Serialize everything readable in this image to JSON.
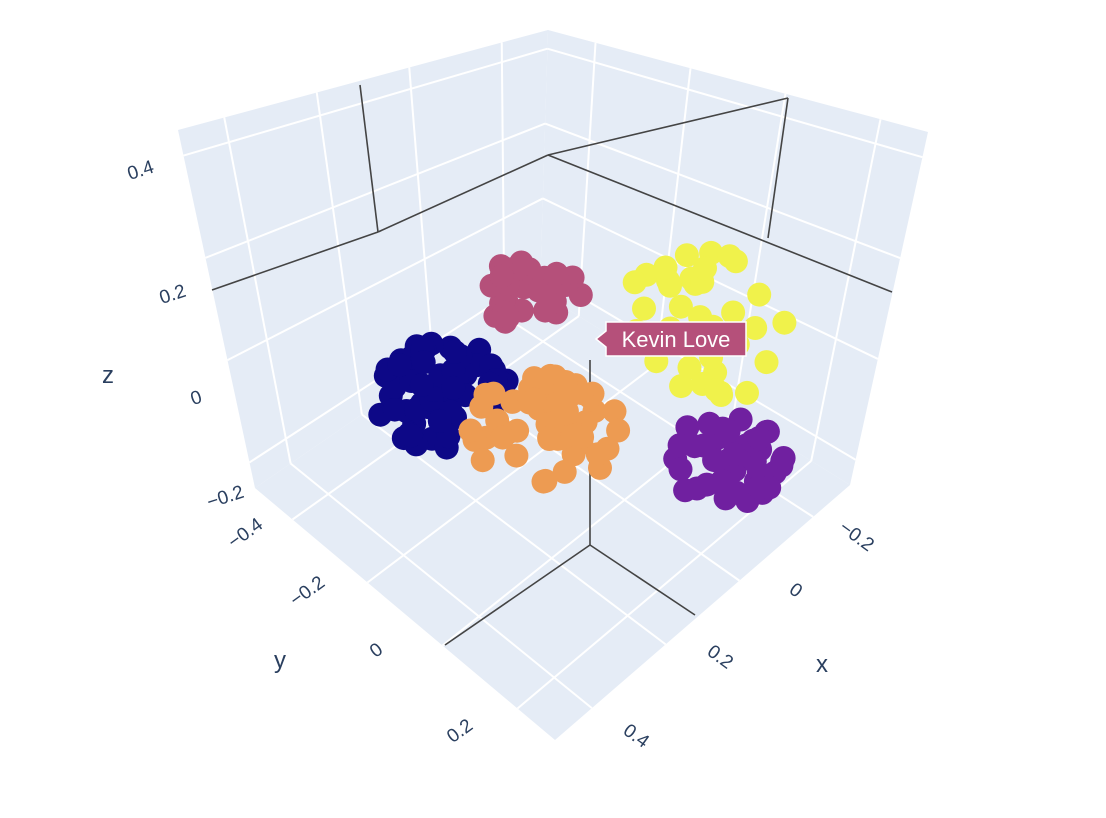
{
  "chart_data": {
    "type": "scatter",
    "projection": "3d",
    "axes": {
      "x": {
        "title": "x",
        "ticks": [
          "−0.2",
          "0",
          "0.2",
          "0.4"
        ],
        "range": [
          -0.3,
          0.5
        ]
      },
      "y": {
        "title": "y",
        "ticks": [
          "−0.4",
          "−0.2",
          "0",
          "0.2"
        ],
        "range": [
          -0.5,
          0.3
        ]
      },
      "z": {
        "title": "z",
        "ticks": [
          "−0.2",
          "0",
          "0.2",
          "0.4"
        ],
        "range": [
          -0.25,
          0.45
        ]
      }
    },
    "grid": true,
    "background_color": "#e5ecf6",
    "marker_size": "large",
    "clusters": [
      {
        "color": "#0d0887",
        "approx_points": 60
      },
      {
        "color": "#ed9b52",
        "approx_points": 60
      },
      {
        "color": "#b5507a",
        "approx_points": 35
      },
      {
        "color": "#f0f24b",
        "approx_points": 40
      },
      {
        "color": "#7020a0",
        "approx_points": 45
      }
    ],
    "hover": {
      "label": "Kevin Love",
      "color": "#b5507a"
    }
  }
}
